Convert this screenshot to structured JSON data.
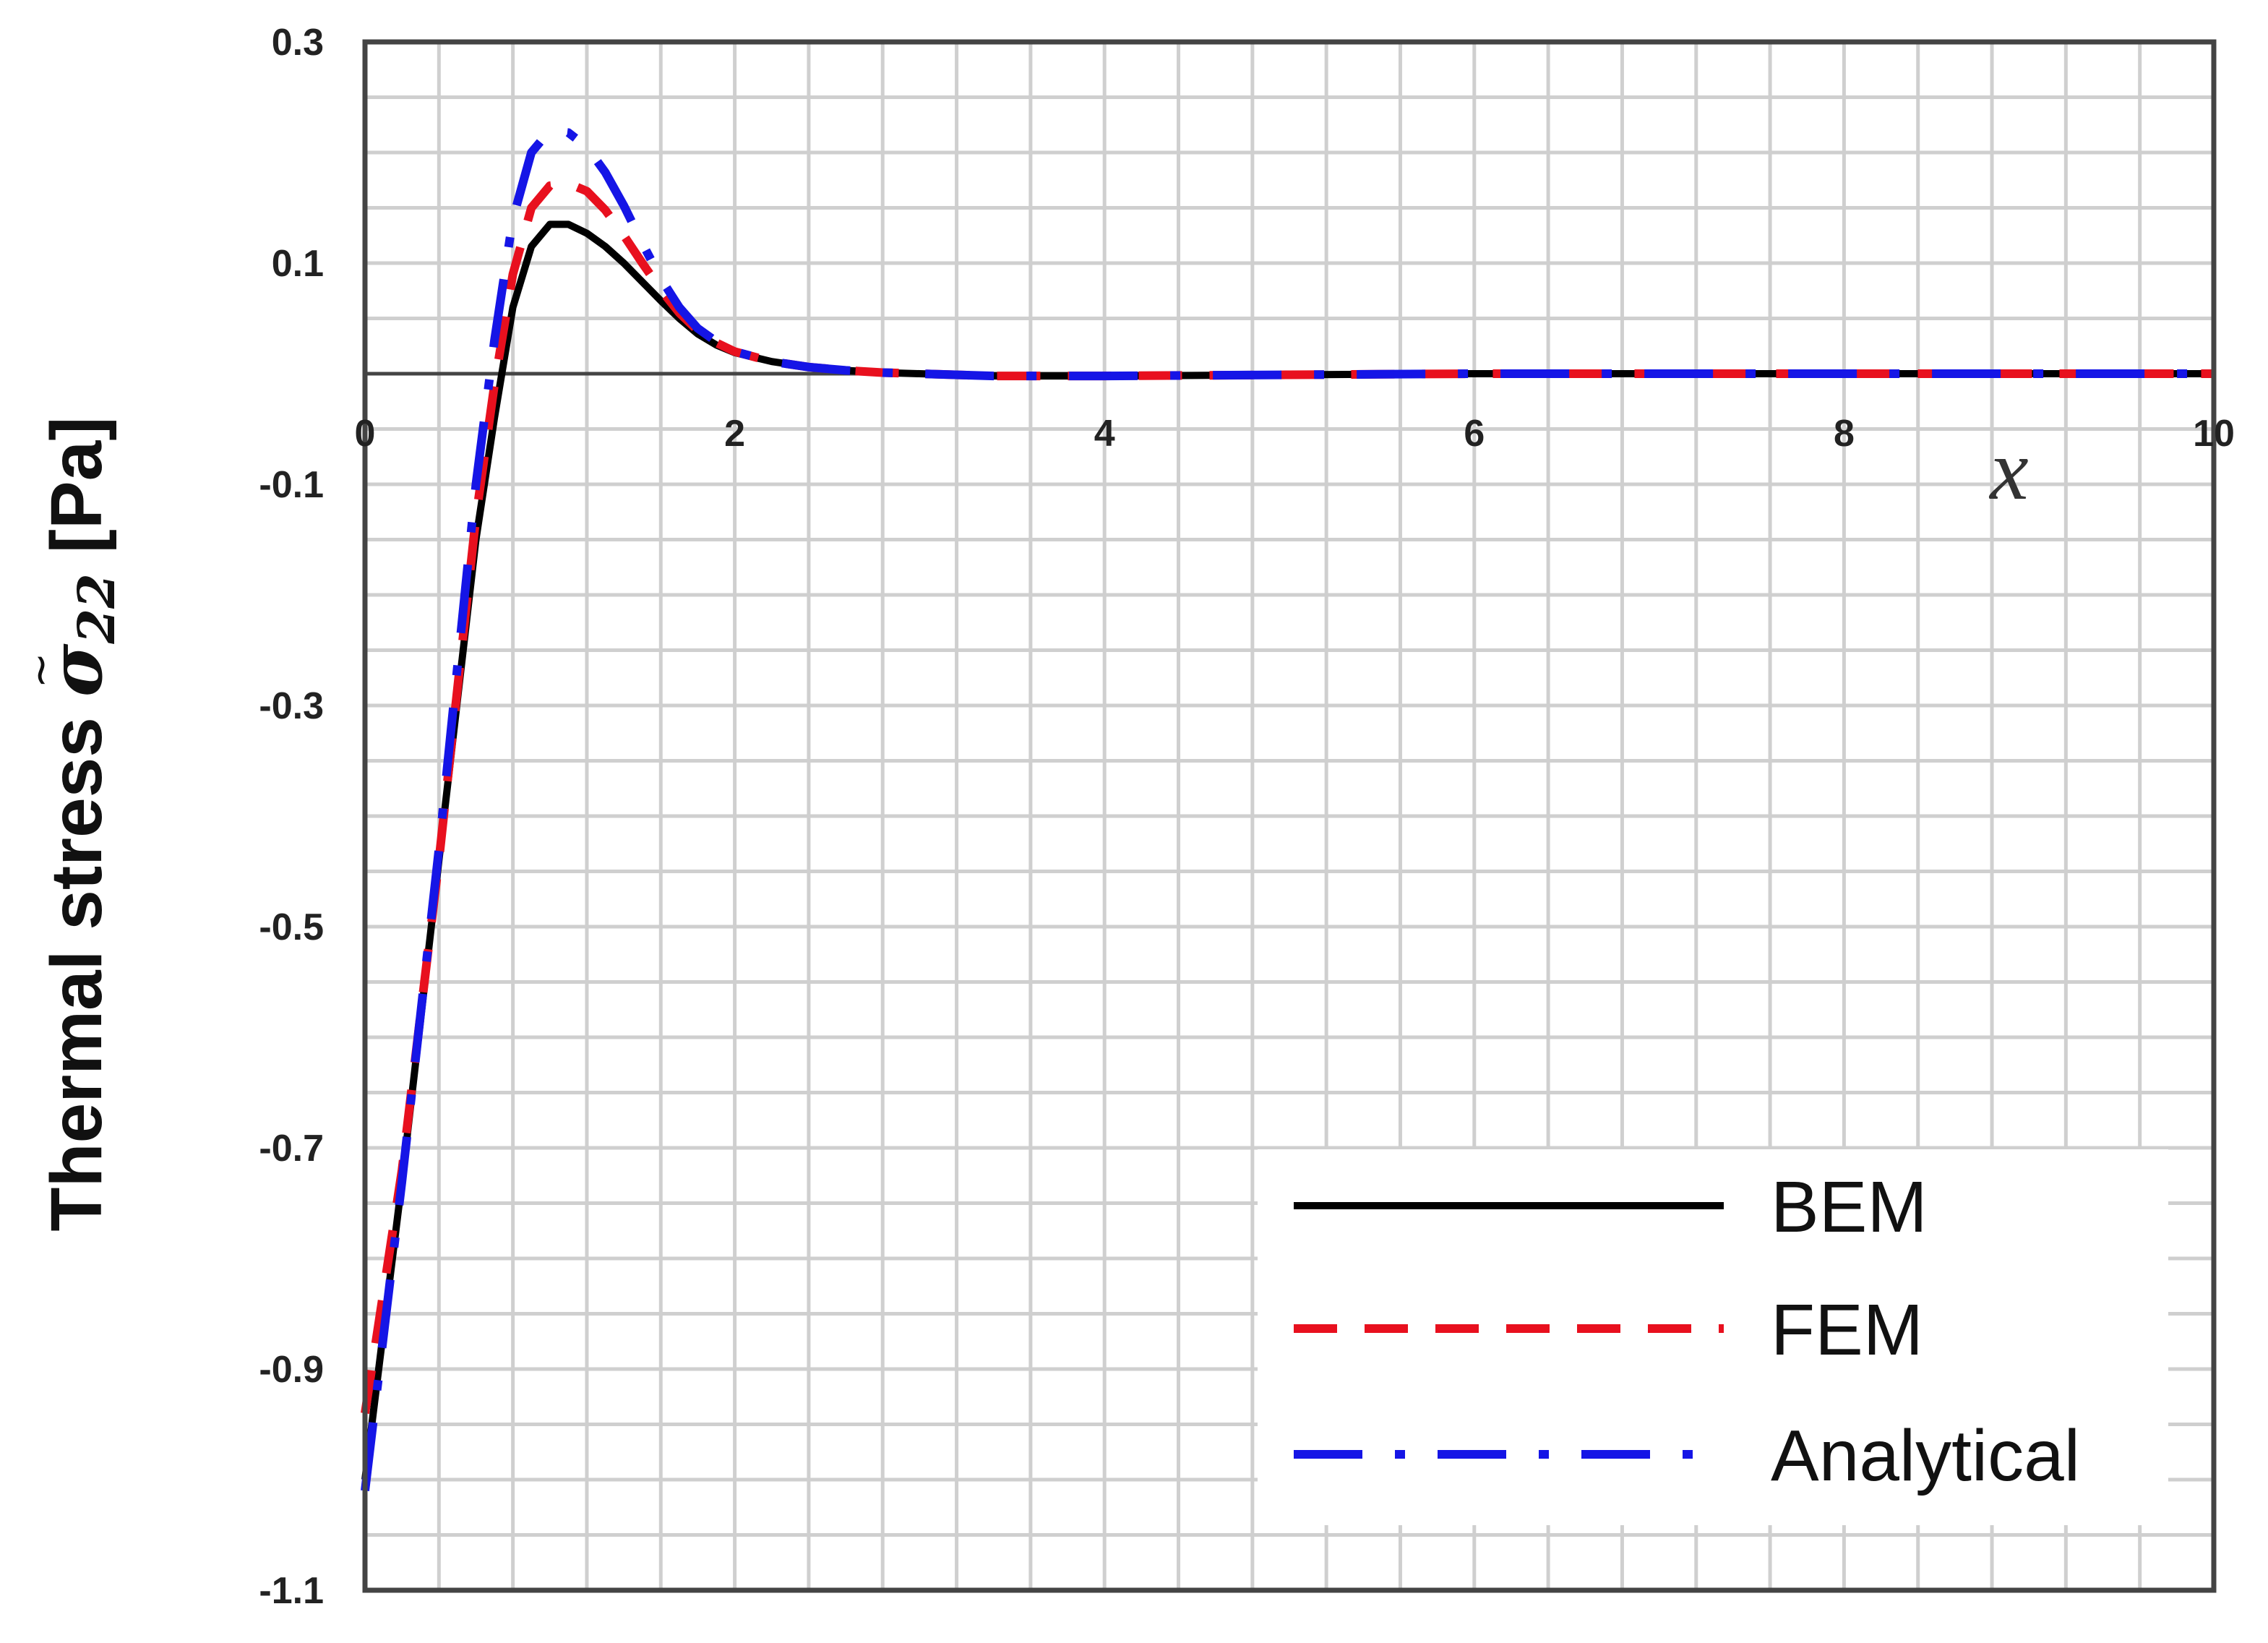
{
  "chart_data": {
    "type": "line",
    "title": "",
    "xlabel": "x",
    "ylabel_main": "Thermal stress ",
    "ylabel_symbol": "σ",
    "ylabel_subscript": "22",
    "ylabel_unit": " [Pa]",
    "xlim": [
      0,
      10
    ],
    "ylim": [
      -1.1,
      0.3
    ],
    "xticks": [
      0,
      2,
      4,
      6,
      8,
      10
    ],
    "xtick_labels": [
      "0",
      "2",
      "4",
      "6",
      "8",
      "10"
    ],
    "yticks": [
      0.3,
      0.1,
      -0.1,
      -0.3,
      -0.5,
      -0.7,
      -0.9,
      -1.1
    ],
    "ytick_labels": [
      "0.3",
      "0.1",
      "-0.1",
      "-0.3",
      "-0.5",
      "-0.7",
      "-0.9",
      "-1.1"
    ],
    "grid": true,
    "legend_position": "bottom-right",
    "series": [
      {
        "name": "BEM",
        "color": "#000000",
        "style": "solid",
        "x": [
          0,
          0.2,
          0.4,
          0.6,
          0.7,
          0.8,
          0.9,
          1.0,
          1.1,
          1.2,
          1.3,
          1.4,
          1.5,
          1.6,
          1.7,
          1.8,
          1.9,
          2.0,
          2.2,
          2.4,
          2.6,
          2.8,
          3.0,
          3.4,
          4.0,
          5.0,
          6.0,
          7.0,
          8.0,
          9.0,
          10.0
        ],
        "y": [
          -1.0,
          -0.73,
          -0.44,
          -0.15,
          -0.04,
          0.06,
          0.115,
          0.135,
          0.135,
          0.127,
          0.115,
          0.1,
          0.083,
          0.066,
          0.05,
          0.036,
          0.026,
          0.019,
          0.011,
          0.006,
          0.003,
          0.001,
          0.0,
          -0.002,
          -0.002,
          -0.001,
          0.0,
          0.0,
          0.0,
          0.0,
          0.0
        ]
      },
      {
        "name": "FEM",
        "color": "#e8101e",
        "style": "dashed",
        "x": [
          0,
          0.2,
          0.4,
          0.6,
          0.7,
          0.8,
          0.9,
          1.0,
          1.1,
          1.2,
          1.3,
          1.4,
          1.5,
          1.6,
          1.7,
          1.8,
          1.9,
          2.0,
          2.2,
          2.4,
          2.6,
          2.8,
          3.0,
          3.4,
          4.0,
          5.0,
          6.0,
          7.0,
          8.0,
          9.0,
          10.0
        ],
        "y": [
          -0.94,
          -0.72,
          -0.44,
          -0.13,
          -0.01,
          0.09,
          0.15,
          0.17,
          0.172,
          0.165,
          0.148,
          0.125,
          0.1,
          0.076,
          0.055,
          0.039,
          0.028,
          0.02,
          0.011,
          0.006,
          0.003,
          0.001,
          0.0,
          -0.002,
          -0.002,
          -0.001,
          0.0,
          0.0,
          0.0,
          0.0,
          0.0
        ]
      },
      {
        "name": "Analytical",
        "color": "#1515e6",
        "style": "longdash-dot",
        "x": [
          0,
          0.2,
          0.4,
          0.6,
          0.7,
          0.8,
          0.9,
          1.0,
          1.1,
          1.2,
          1.3,
          1.4,
          1.5,
          1.6,
          1.7,
          1.8,
          1.9,
          2.0,
          2.2,
          2.4,
          2.6,
          2.8,
          3.0,
          3.4,
          4.0,
          5.0,
          6.0,
          7.0,
          8.0,
          9.0,
          10.0
        ],
        "y": [
          -1.01,
          -0.73,
          -0.43,
          -0.1,
          0.03,
          0.14,
          0.2,
          0.22,
          0.218,
          0.205,
          0.182,
          0.152,
          0.118,
          0.086,
          0.06,
          0.041,
          0.029,
          0.02,
          0.011,
          0.006,
          0.003,
          0.001,
          0.0,
          -0.002,
          -0.002,
          -0.001,
          0.0,
          0.0,
          0.0,
          0.0,
          0.0
        ]
      }
    ]
  }
}
